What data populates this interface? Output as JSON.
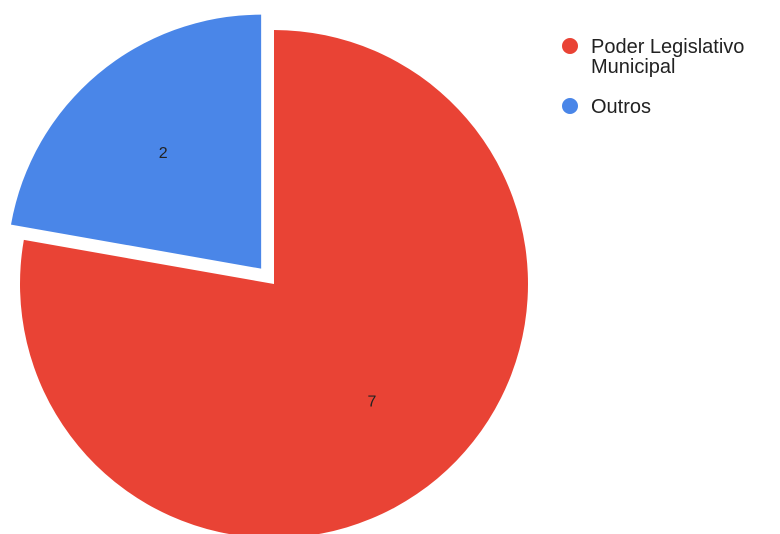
{
  "chart_data": {
    "type": "pie",
    "categories": [
      "Poder Legislativo Municipal",
      "Outros"
    ],
    "values": [
      7,
      2
    ],
    "colors": [
      "#e94335",
      "#4a86e8"
    ],
    "data_labels": [
      "7",
      "2"
    ],
    "exploded": [
      false,
      true
    ],
    "start_angle": "top",
    "direction": "clockwise",
    "title": "",
    "legend": {
      "position": "right",
      "entries": [
        {
          "lines": [
            "Poder Legislativo",
            "Municipal"
          ],
          "color": "#e94335"
        },
        {
          "lines": [
            "Outros"
          ],
          "color": "#4a86e8"
        }
      ]
    }
  }
}
